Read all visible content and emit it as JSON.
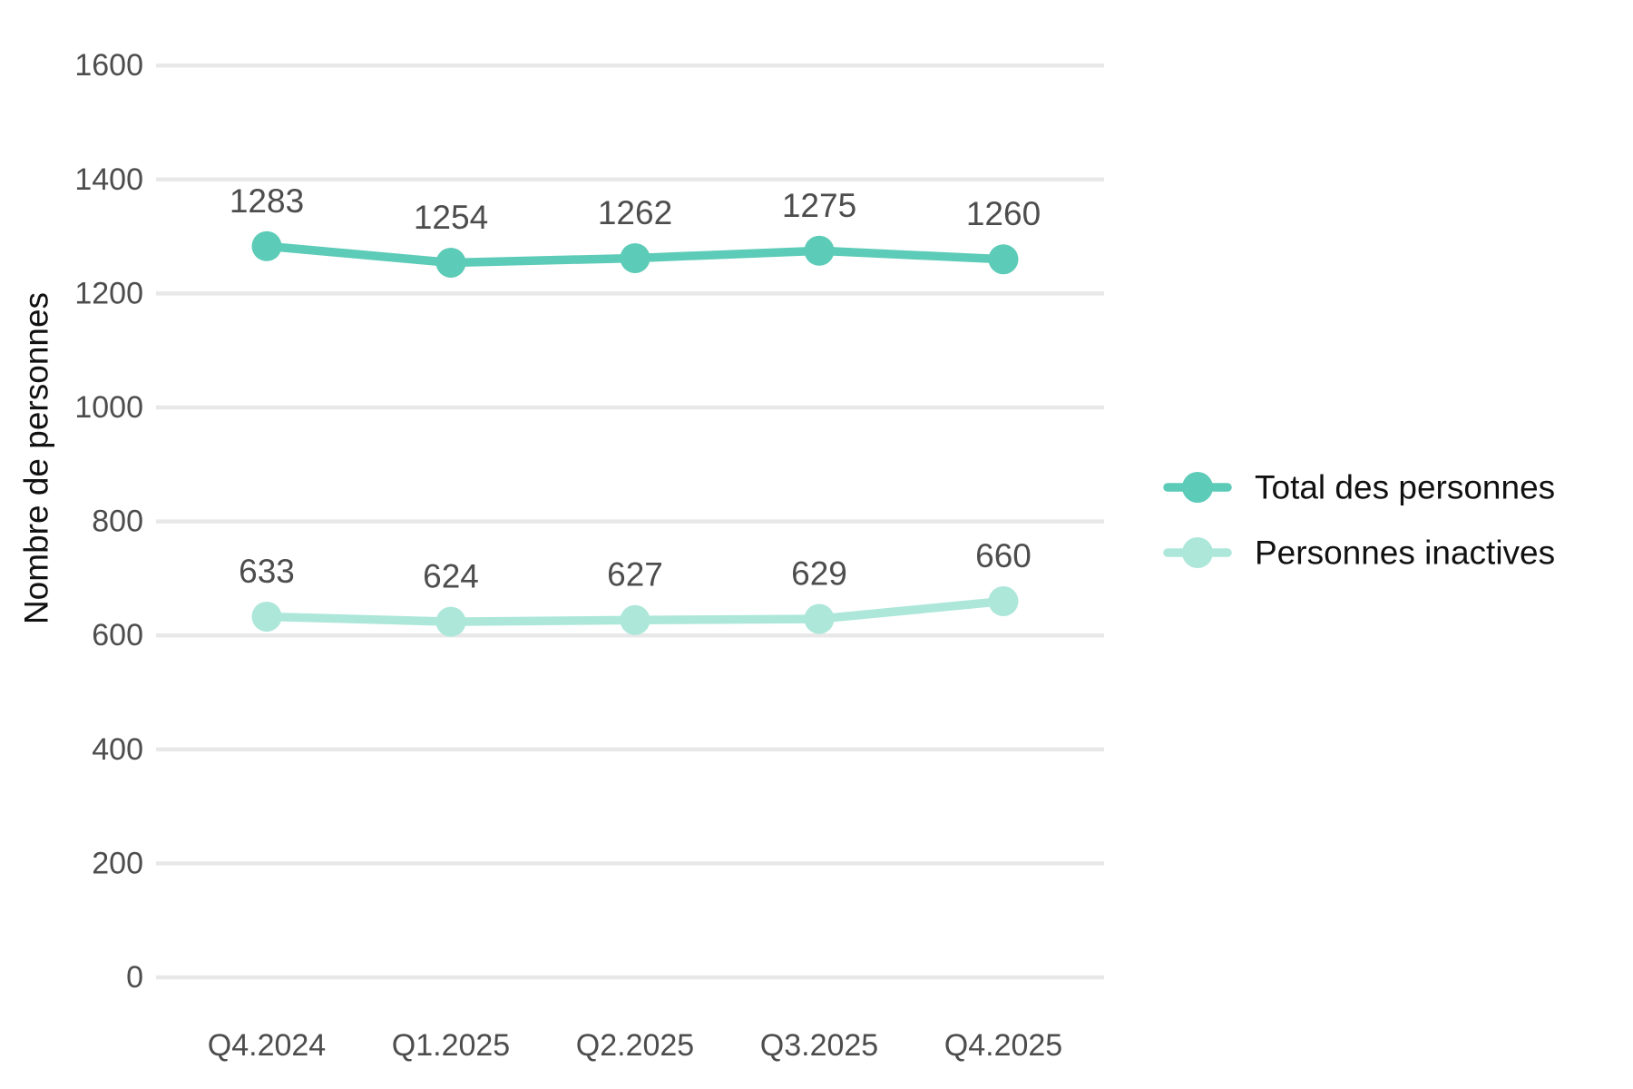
{
  "chart_data": {
    "type": "line",
    "title": "",
    "categories": [
      "Q4.2024",
      "Q1.2025",
      "Q2.2025",
      "Q3.2025",
      "Q4.2025"
    ],
    "series": [
      {
        "name": "Total des personnes",
        "values": [
          1283,
          1254,
          1262,
          1275,
          1260
        ],
        "color": "#5CCBB7"
      },
      {
        "name": "Personnes inactives",
        "values": [
          633,
          624,
          627,
          629,
          660
        ],
        "color": "#ACE7D9"
      }
    ],
    "xlabel": "",
    "ylabel": "Nombre de personnes",
    "ylim": [
      0,
      1600
    ],
    "yticks": [
      0,
      200,
      400,
      600,
      800,
      1000,
      1200,
      1400,
      1600
    ],
    "grid": "horizontal-only",
    "legend_position": "right-middle",
    "point_labels_visible": true,
    "colors": {
      "gridline": "#E8E8E8",
      "tick_label": "#4D4D4D",
      "value_label": "#4D4D4D",
      "text": "#111111",
      "background": "#FFFFFF"
    }
  }
}
